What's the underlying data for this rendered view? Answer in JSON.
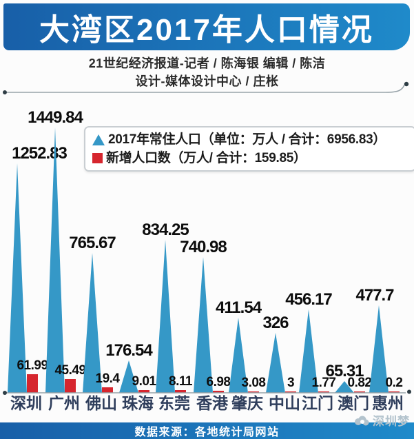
{
  "title": "大湾区2017年人口情况",
  "credits": {
    "line1": "21世纪经济报道-记者 / 陈海银  编辑 / 陈洁",
    "line2": "设计-媒体设计中心 / 庄枨"
  },
  "legend": {
    "resident_label": "2017年常住人口（单位：万人 / 合计：6956.83）",
    "new_label": "新增人口数（万人/ 合计：159.85）"
  },
  "colors": {
    "triangle": "#3598c7",
    "bar": "#d6262e",
    "banner_left": "#185fa8",
    "banner_right": "#1f8aca",
    "city_label": "#2f3e5c",
    "line": "#98a3a9",
    "dot": "#2e3d45"
  },
  "chart_data": {
    "type": "bar",
    "style": "triangle-spikes-with-companion-bars",
    "title": "大湾区2017年人口情况",
    "categories": [
      "深圳",
      "广州",
      "佛山",
      "珠海",
      "东莞",
      "香港",
      "肇庆",
      "中山",
      "江门",
      "澳门",
      "惠州"
    ],
    "series": [
      {
        "name": "2017年常住人口",
        "unit": "万人",
        "total": 6956.83,
        "values": [
          1252.83,
          1449.84,
          765.67,
          176.54,
          834.25,
          740.98,
          411.54,
          326,
          456.17,
          65.31,
          477.7
        ]
      },
      {
        "name": "新增人口数",
        "unit": "万人",
        "total": 159.85,
        "values": [
          61.99,
          45.49,
          19.4,
          9.01,
          8.11,
          6.98,
          3.08,
          3,
          1.77,
          0.82,
          0.2
        ]
      }
    ],
    "legend_position": "upper-center",
    "grid": false
  },
  "footer": {
    "source": "数据来源：各地统计局网站"
  },
  "watermark": "深圳梦"
}
